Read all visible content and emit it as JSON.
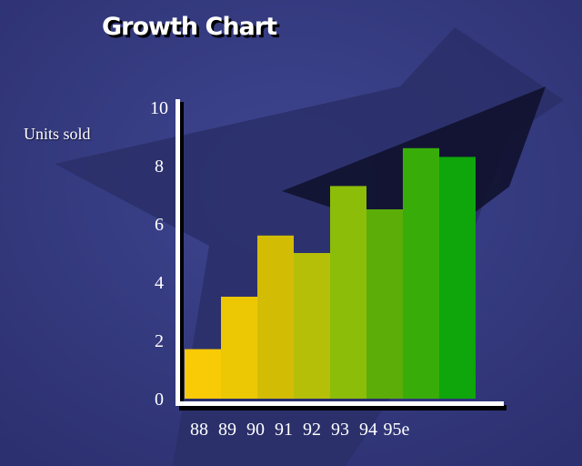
{
  "chart_data": {
    "type": "bar",
    "title": "Growth Chart",
    "xlabel": "",
    "ylabel": "Units sold",
    "categories": [
      "88",
      "89",
      "90",
      "91",
      "92",
      "93",
      "94",
      "95e"
    ],
    "values": [
      1.7,
      3.5,
      5.6,
      5.0,
      7.3,
      6.5,
      8.6,
      8.3
    ],
    "ylim": [
      0,
      10
    ],
    "yticks": [
      "0",
      "2",
      "4",
      "6",
      "8",
      "10"
    ],
    "grid": false,
    "legend": "none",
    "colors": [
      "#f9ca06",
      "#ecc804",
      "#d3bd04",
      "#b5bf08",
      "#8cbd08",
      "#5cad08",
      "#38ad0a",
      "#0ea60a"
    ]
  }
}
